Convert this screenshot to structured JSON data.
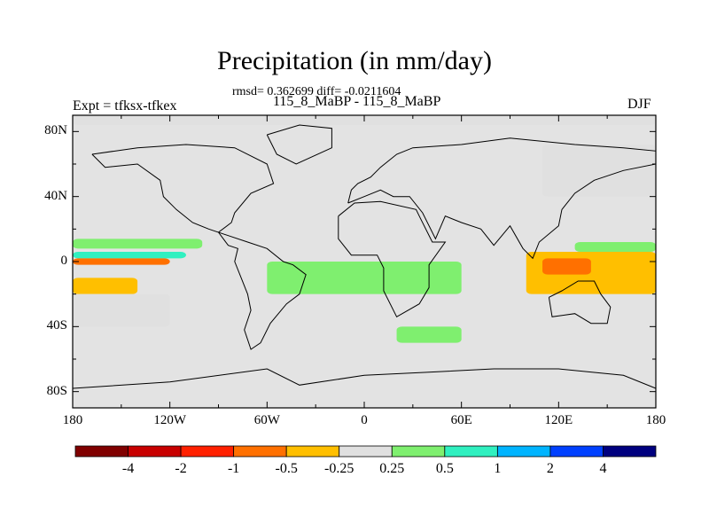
{
  "title": "Precipitation (in mm/day)",
  "subtitle": "rmsd= 0.362699 diff= -0.0211604",
  "subsubtitle": "115_8_MaBP - 115_8_MaBP",
  "left_label": "Expt = tfksx-tfkex",
  "right_label": "DJF",
  "chart_data": {
    "type": "heatmap",
    "title": "Precipitation (in mm/day)",
    "units": "mm/day",
    "season": "DJF",
    "xlim": [
      -180,
      180
    ],
    "ylim": [
      -90,
      90
    ],
    "x_ticks": [
      {
        "value": -180,
        "label": "180"
      },
      {
        "value": -120,
        "label": "120W"
      },
      {
        "value": -60,
        "label": "60W"
      },
      {
        "value": 0,
        "label": "0"
      },
      {
        "value": 60,
        "label": "60E"
      },
      {
        "value": 120,
        "label": "120E"
      },
      {
        "value": 180,
        "label": "180"
      }
    ],
    "y_ticks": [
      {
        "value": 80,
        "label": "80N"
      },
      {
        "value": 40,
        "label": "40N"
      },
      {
        "value": 0,
        "label": "0"
      },
      {
        "value": -40,
        "label": "40S"
      },
      {
        "value": -80,
        "label": "80S"
      }
    ],
    "contour_levels": [
      -4,
      -2,
      -1,
      -0.5,
      -0.25,
      0.25,
      0.5,
      1,
      2,
      4
    ],
    "level_labels": [
      "-4",
      "-2",
      "-1",
      "-0.5",
      "-0.25",
      "0.25",
      "0.5",
      "1",
      "2",
      "4"
    ],
    "colors": [
      "#800000",
      "#c80000",
      "#ff2000",
      "#ff7000",
      "#ffbf00",
      "#e0e0e0",
      "#7fef6f",
      "#30f0c0",
      "#00b4ff",
      "#0040ff",
      "#00007f"
    ],
    "background_color": "#e3e3e3",
    "regions": [
      {
        "level": "-0.25",
        "lon": [
          -180,
          180
        ],
        "lat": [
          84,
          90
        ]
      },
      {
        "level": "-0.25",
        "lon": [
          -180,
          -150
        ],
        "lat": [
          8,
          12
        ]
      },
      {
        "level": "0.5",
        "lon": [
          -180,
          -100
        ],
        "lat": [
          8,
          14
        ]
      },
      {
        "level": "1",
        "lon": [
          -180,
          -110
        ],
        "lat": [
          2,
          6
        ]
      },
      {
        "level": "-1",
        "lon": [
          -180,
          -120
        ],
        "lat": [
          -2,
          2
        ]
      },
      {
        "level": "-0.5",
        "lon": [
          -180,
          -140
        ],
        "lat": [
          -20,
          -10
        ]
      },
      {
        "level": "-0.25",
        "lon": [
          -180,
          -120
        ],
        "lat": [
          -40,
          -20
        ]
      },
      {
        "level": "1",
        "lon": [
          -50,
          30
        ],
        "lat": [
          -12,
          -4
        ]
      },
      {
        "level": "2",
        "lon": [
          -40,
          -10
        ],
        "lat": [
          -16,
          -8
        ]
      },
      {
        "level": "0.5",
        "lon": [
          -60,
          60
        ],
        "lat": [
          -20,
          0
        ]
      },
      {
        "level": "0.5",
        "lon": [
          20,
          60
        ],
        "lat": [
          -50,
          -40
        ]
      },
      {
        "level": "-0.5",
        "lon": [
          100,
          180
        ],
        "lat": [
          -20,
          6
        ]
      },
      {
        "level": "-1",
        "lon": [
          110,
          140
        ],
        "lat": [
          -8,
          2
        ]
      },
      {
        "level": "-0.25",
        "lon": [
          110,
          180
        ],
        "lat": [
          40,
          72
        ]
      },
      {
        "level": "0.5",
        "lon": [
          130,
          180
        ],
        "lat": [
          6,
          12
        ]
      }
    ]
  }
}
